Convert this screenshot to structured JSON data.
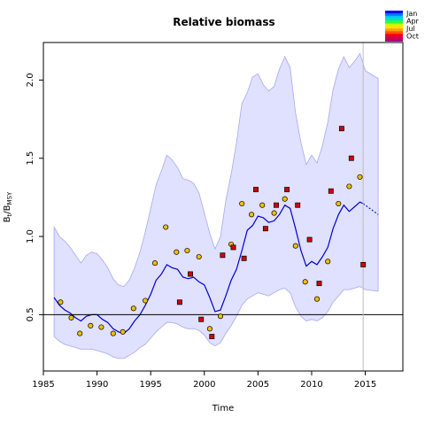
{
  "chart_data": {
    "type": "scatter",
    "title": "Relative biomass",
    "xlabel": "Time",
    "ylabel": "B_t/B_MSY",
    "ylabel_main": "B",
    "ylabel_sub": "t",
    "ylabel_slash": "/B",
    "ylabel_sub2": "MSY",
    "xlim": [
      1985,
      2018.5
    ],
    "ylim": [
      0.14,
      2.24
    ],
    "xticks": [
      1985,
      1990,
      1995,
      2000,
      2005,
      2010,
      2015
    ],
    "yticks": [
      0.5,
      1.0,
      1.5,
      2.0
    ],
    "ytick_labels": [
      "0.5",
      "1.0",
      "1.5",
      "2.0"
    ],
    "reference_line_y": 0.5,
    "reference_line_x": 2014.8,
    "grid": false,
    "legend_position": "top-right",
    "legend": [
      "Jan",
      "Apr",
      "Jul",
      "Oct"
    ],
    "colors": {
      "band_fill": "#e0e0ff",
      "band_edge": "#a8a8f0",
      "median_line": "#0000d0",
      "point_yellow": "#f0c000",
      "point_red": "#d0000a"
    },
    "median_series": {
      "name": "",
      "x": [
        1986.0,
        1986.5,
        1987.0,
        1987.5,
        1988.0,
        1988.5,
        1989.0,
        1989.5,
        1990.0,
        1990.5,
        1991.0,
        1991.5,
        1992.0,
        1992.5,
        1993.0,
        1993.5,
        1994.0,
        1994.5,
        1995.0,
        1995.5,
        1996.0,
        1996.5,
        1997.0,
        1997.5,
        1998.0,
        1998.5,
        1999.0,
        1999.5,
        2000.0,
        2000.5,
        2001.0,
        2001.5,
        2002.0,
        2002.5,
        2003.0,
        2003.5,
        2004.0,
        2004.5,
        2005.0,
        2005.5,
        2006.0,
        2006.5,
        2007.0,
        2007.5,
        2008.0,
        2008.5,
        2009.0,
        2009.5,
        2010.0,
        2010.5,
        2011.0,
        2011.5,
        2012.0,
        2012.5,
        2013.0,
        2013.5,
        2014.0,
        2014.5,
        2014.8
      ],
      "y": [
        0.61,
        0.56,
        0.53,
        0.51,
        0.48,
        0.46,
        0.49,
        0.5,
        0.5,
        0.47,
        0.45,
        0.41,
        0.39,
        0.38,
        0.41,
        0.46,
        0.5,
        0.56,
        0.63,
        0.72,
        0.76,
        0.82,
        0.8,
        0.79,
        0.74,
        0.73,
        0.74,
        0.71,
        0.69,
        0.61,
        0.52,
        0.53,
        0.62,
        0.72,
        0.79,
        0.91,
        1.04,
        1.07,
        1.13,
        1.12,
        1.09,
        1.1,
        1.14,
        1.2,
        1.18,
        1.05,
        0.91,
        0.81,
        0.84,
        0.82,
        0.87,
        0.93,
        1.05,
        1.14,
        1.2,
        1.16,
        1.19,
        1.22,
        1.21
      ]
    },
    "forecast_series": {
      "name": "",
      "x": [
        2014.8,
        2016.2
      ],
      "y": [
        1.21,
        1.14
      ]
    },
    "band": {
      "x": [
        1986.0,
        1986.5,
        1987.0,
        1987.5,
        1988.0,
        1988.5,
        1989.0,
        1989.5,
        1990.0,
        1990.5,
        1991.0,
        1991.5,
        1992.0,
        1992.5,
        1993.0,
        1993.5,
        1994.0,
        1994.5,
        1995.0,
        1995.5,
        1996.0,
        1996.5,
        1997.0,
        1997.5,
        1998.0,
        1998.5,
        1999.0,
        1999.5,
        2000.0,
        2000.5,
        2001.0,
        2001.5,
        2002.0,
        2002.5,
        2003.0,
        2003.5,
        2004.0,
        2004.5,
        2005.0,
        2005.5,
        2006.0,
        2006.5,
        2007.0,
        2007.5,
        2008.0,
        2008.5,
        2009.0,
        2009.5,
        2010.0,
        2010.5,
        2011.0,
        2011.5,
        2012.0,
        2012.5,
        2013.0,
        2013.5,
        2014.0,
        2014.5,
        2015.0,
        2016.2
      ],
      "upper": [
        1.06,
        1.0,
        0.97,
        0.93,
        0.88,
        0.83,
        0.88,
        0.9,
        0.89,
        0.85,
        0.8,
        0.73,
        0.69,
        0.68,
        0.72,
        0.8,
        0.9,
        1.03,
        1.18,
        1.33,
        1.42,
        1.52,
        1.49,
        1.44,
        1.37,
        1.36,
        1.34,
        1.28,
        1.15,
        1.02,
        0.92,
        1.0,
        1.23,
        1.4,
        1.6,
        1.85,
        1.92,
        2.02,
        2.04,
        1.97,
        1.93,
        1.96,
        2.07,
        2.15,
        2.08,
        1.79,
        1.6,
        1.46,
        1.52,
        1.47,
        1.58,
        1.73,
        1.94,
        2.07,
        2.15,
        2.08,
        2.12,
        2.17,
        2.06,
        2.01
      ],
      "lower": [
        0.36,
        0.33,
        0.31,
        0.3,
        0.29,
        0.28,
        0.28,
        0.28,
        0.27,
        0.26,
        0.25,
        0.23,
        0.22,
        0.22,
        0.24,
        0.26,
        0.29,
        0.31,
        0.35,
        0.39,
        0.42,
        0.45,
        0.45,
        0.44,
        0.42,
        0.41,
        0.41,
        0.4,
        0.37,
        0.32,
        0.3,
        0.32,
        0.38,
        0.43,
        0.49,
        0.56,
        0.6,
        0.62,
        0.64,
        0.63,
        0.62,
        0.64,
        0.66,
        0.67,
        0.64,
        0.55,
        0.49,
        0.46,
        0.47,
        0.46,
        0.48,
        0.52,
        0.58,
        0.62,
        0.66,
        0.66,
        0.67,
        0.68,
        0.66,
        0.65
      ]
    },
    "points_yellow": {
      "x": [
        1986.6,
        1987.6,
        1988.4,
        1989.4,
        1990.4,
        1991.5,
        1992.4,
        1993.4,
        1994.5,
        1995.4,
        1996.4,
        1997.4,
        1998.4,
        1999.5,
        2000.5,
        2001.5,
        2002.5,
        2003.5,
        2004.4,
        2005.4,
        2006.5,
        2007.5,
        2008.5,
        2009.4,
        2010.5,
        2011.5,
        2012.5,
        2013.5,
        2014.5
      ],
      "y": [
        0.58,
        0.48,
        0.38,
        0.43,
        0.42,
        0.38,
        0.39,
        0.54,
        0.59,
        0.83,
        1.06,
        0.9,
        0.91,
        0.87,
        0.41,
        0.49,
        0.95,
        1.21,
        1.14,
        1.2,
        1.15,
        1.24,
        0.94,
        0.71,
        0.6,
        0.84,
        1.21,
        1.32,
        1.38
      ]
    },
    "points_red": {
      "x": [
        1997.7,
        1998.7,
        1999.7,
        2000.7,
        2001.7,
        2002.7,
        2003.7,
        2004.8,
        2005.7,
        2006.7,
        2007.7,
        2008.7,
        2009.8,
        2010.7,
        2011.8,
        2012.8,
        2013.7,
        2014.8
      ],
      "y": [
        0.58,
        0.76,
        0.47,
        0.36,
        0.88,
        0.93,
        0.86,
        1.3,
        1.05,
        1.2,
        1.3,
        1.2,
        0.98,
        0.7,
        1.29,
        1.69,
        1.5,
        0.82
      ]
    }
  }
}
